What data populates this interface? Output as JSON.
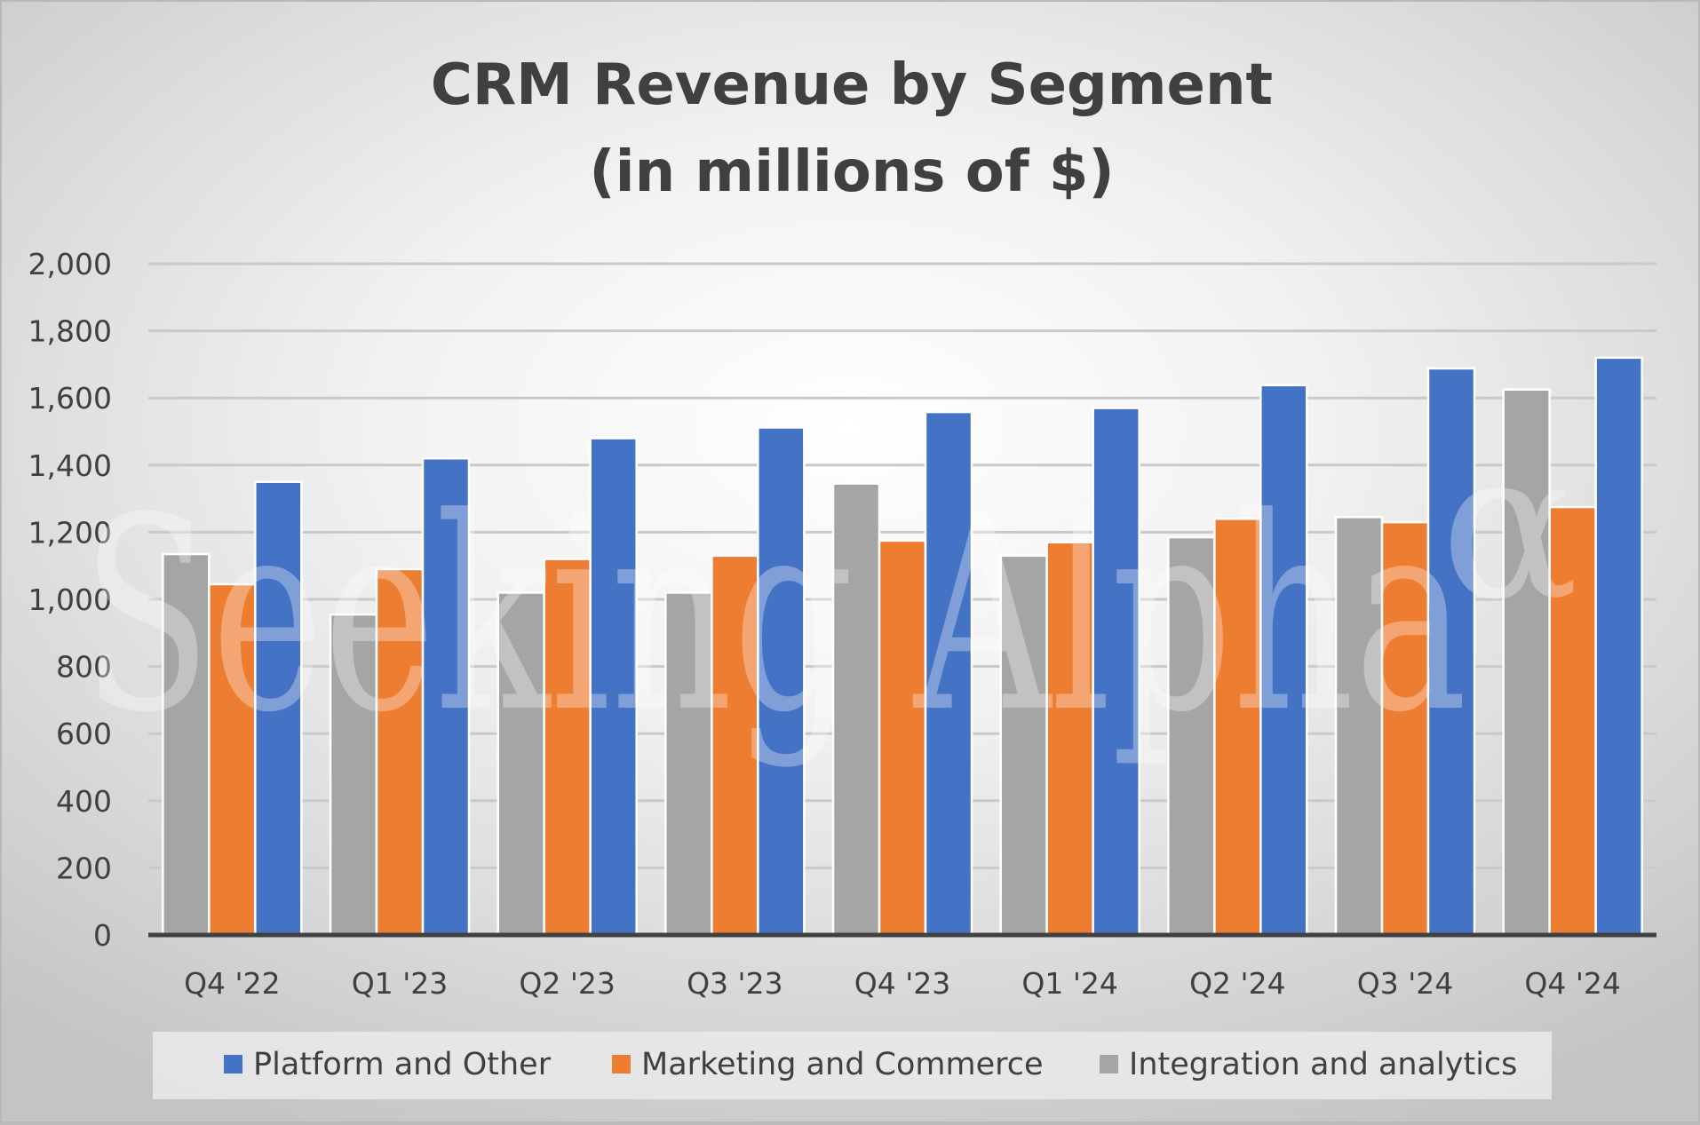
{
  "chart_data": {
    "type": "bar",
    "title": "CRM Revenue by Segment",
    "subtitle": "(in millions of $)",
    "xlabel": "",
    "ylabel": "",
    "ylim": [
      0,
      2000
    ],
    "yticks": [
      "0",
      "200",
      "400",
      "600",
      "800",
      "1,000",
      "1,200",
      "1,400",
      "1,600",
      "1,800",
      "2,000"
    ],
    "ytick_values": [
      0,
      200,
      400,
      600,
      800,
      1000,
      1200,
      1400,
      1600,
      1800,
      2000
    ],
    "categories": [
      "Q4 '22",
      "Q1 '23",
      "Q2 '23",
      "Q3 '23",
      "Q4 '23",
      "Q1 '24",
      "Q2 '24",
      "Q3 '24",
      "Q4 '24"
    ],
    "series": [
      {
        "name": "Integration and analytics",
        "color": "#a5a5a5",
        "values": [
          1135,
          955,
          1020,
          1020,
          1345,
          1130,
          1185,
          1245,
          1625
        ]
      },
      {
        "name": "Marketing and Commerce",
        "color": "#ed7d31",
        "values": [
          1045,
          1090,
          1120,
          1130,
          1175,
          1170,
          1240,
          1230,
          1275
        ]
      },
      {
        "name": "Platform and Other",
        "color": "#4472c4",
        "values": [
          1350,
          1420,
          1480,
          1512,
          1558,
          1570,
          1638,
          1688,
          1720
        ]
      }
    ],
    "legend": {
      "position": "bottom",
      "order": [
        "Platform and Other",
        "Marketing and Commerce",
        "Integration and analytics"
      ]
    },
    "grid": true
  },
  "watermark": {
    "text": "Seeking Alpha",
    "symbol": "α"
  }
}
